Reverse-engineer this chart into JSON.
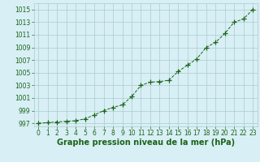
{
  "x": [
    0,
    1,
    2,
    3,
    4,
    5,
    6,
    7,
    8,
    9,
    10,
    11,
    12,
    13,
    14,
    15,
    16,
    17,
    18,
    19,
    20,
    21,
    22,
    23
  ],
  "y": [
    997.0,
    997.1,
    997.2,
    997.3,
    997.4,
    997.7,
    998.3,
    999.0,
    999.5,
    999.9,
    1001.2,
    1003.0,
    1003.5,
    1003.6,
    1003.8,
    1005.2,
    1006.2,
    1007.2,
    1009.0,
    1009.8,
    1011.2,
    1013.0,
    1013.5,
    1015.0
  ],
  "line_color": "#1a6318",
  "marker": "+",
  "marker_color": "#1a6318",
  "background_color": "#cce8d4",
  "plot_bg_color": "#d8eff5",
  "grid_color": "#aacccc",
  "xlabel": "Graphe pression niveau de la mer (hPa)",
  "xlim": [
    -0.5,
    23.5
  ],
  "ylim": [
    996.5,
    1016.0
  ],
  "yticks": [
    997,
    999,
    1001,
    1003,
    1005,
    1007,
    1009,
    1011,
    1013,
    1015
  ],
  "xticks": [
    0,
    1,
    2,
    3,
    4,
    5,
    6,
    7,
    8,
    9,
    10,
    11,
    12,
    13,
    14,
    15,
    16,
    17,
    18,
    19,
    20,
    21,
    22,
    23
  ],
  "tick_fontsize": 5.5,
  "xlabel_fontsize": 7,
  "line_style": "--",
  "line_width": 0.7,
  "marker_size": 4
}
